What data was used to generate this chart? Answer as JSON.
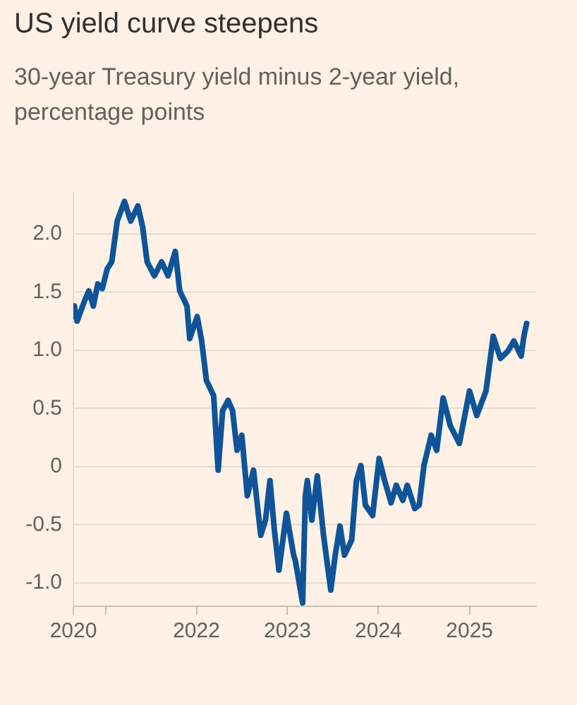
{
  "chart_data": {
    "type": "line",
    "title": "US yield curve steepens",
    "subtitle": "30-year Treasury yield minus 2-year yield, percentage points",
    "x": [
      "2020-08-25",
      "2020-08-29",
      "2020-09-09",
      "2020-10-08",
      "2020-10-26",
      "2020-11-13",
      "2020-12-01",
      "2020-12-19",
      "2021-01-08",
      "2021-01-26",
      "2021-02-17",
      "2021-03-18",
      "2021-04-12",
      "2021-05-11",
      "2021-05-30",
      "2021-06-17",
      "2021-07-16",
      "2021-08-14",
      "2021-09-09",
      "2021-10-08",
      "2021-10-26",
      "2021-11-24",
      "2021-12-05",
      "2022-01-04",
      "2022-01-22",
      "2022-02-10",
      "2022-03-11",
      "2022-03-29",
      "2022-04-16",
      "2022-05-08",
      "2022-05-26",
      "2022-06-13",
      "2022-07-02",
      "2022-07-24",
      "2022-08-18",
      "2022-09-16",
      "2022-10-05",
      "2022-10-23",
      "2022-11-10",
      "2022-11-28",
      "2022-12-28",
      "2023-01-26",
      "2023-02-02",
      "2023-03-03",
      "2023-03-14",
      "2023-03-22",
      "2023-04-09",
      "2023-05-01",
      "2023-05-26",
      "2023-06-24",
      "2023-07-12",
      "2023-07-31",
      "2023-08-18",
      "2023-09-16",
      "2023-10-05",
      "2023-10-23",
      "2023-11-10",
      "2023-12-09",
      "2024-01-04",
      "2024-01-26",
      "2024-02-21",
      "2024-03-13",
      "2024-04-08",
      "2024-04-26",
      "2024-05-26",
      "2024-06-13",
      "2024-07-02",
      "2024-07-31",
      "2024-08-22",
      "2024-09-17",
      "2024-10-16",
      "2024-11-21",
      "2025-01-01",
      "2025-01-30",
      "2025-03-08",
      "2025-04-06",
      "2025-05-05",
      "2025-06-03",
      "2025-06-28",
      "2025-07-27",
      "2025-08-07",
      "2025-08-18"
    ],
    "series": [
      {
        "color": "#0f5499",
        "values": [
          1.29,
          1.38,
          1.25,
          1.42,
          1.51,
          1.38,
          1.57,
          1.53,
          1.7,
          1.76,
          2.11,
          2.28,
          2.11,
          2.24,
          2.06,
          1.76,
          1.64,
          1.76,
          1.64,
          1.85,
          1.51,
          1.38,
          1.1,
          1.29,
          1.08,
          0.74,
          0.61,
          -0.03,
          0.48,
          0.57,
          0.48,
          0.14,
          0.27,
          -0.25,
          -0.03,
          -0.59,
          -0.46,
          -0.12,
          -0.55,
          -0.89,
          -0.4,
          -0.76,
          -0.81,
          -1.17,
          -0.25,
          -0.12,
          -0.46,
          -0.08,
          -0.59,
          -1.06,
          -0.76,
          -0.51,
          -0.76,
          -0.63,
          -0.12,
          0.01,
          -0.33,
          -0.42,
          0.07,
          -0.12,
          -0.31,
          -0.16,
          -0.29,
          -0.16,
          -0.36,
          -0.33,
          0.01,
          0.27,
          0.14,
          0.59,
          0.35,
          0.2,
          0.65,
          0.44,
          0.65,
          1.12,
          0.93,
          0.99,
          1.08,
          0.95,
          1.12,
          1.23
        ]
      }
    ],
    "xlim": [
      "2020-08-25",
      "2025-09-25"
    ],
    "xticks": [
      {
        "value": "2020-08-25",
        "label": "2020"
      },
      {
        "value": "2021",
        "label": null
      },
      "2022",
      "2023",
      "2024",
      "2025"
    ],
    "ylim": [
      -1.2,
      2.35
    ],
    "yticks": [
      {
        "value": -1,
        "label": "-1.0"
      },
      -0.5,
      0,
      0.5,
      {
        "value": 1,
        "label": "1.0"
      },
      1.5,
      {
        "value": 2,
        "label": "2.0"
      }
    ],
    "grid": "y"
  }
}
